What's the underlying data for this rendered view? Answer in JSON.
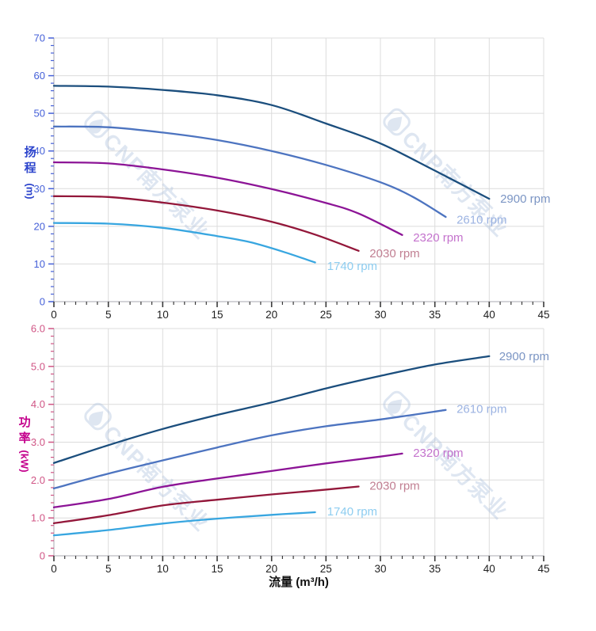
{
  "style": {
    "background": "#ffffff",
    "grid_color": "#dcdcdc",
    "spine_color": "#c6c6cb",
    "x_tick_color": "#3a3a3a",
    "x_tick_label_color": "#1f1f1f"
  },
  "watermark": {
    "logo": "cnp-drop-logo",
    "text": "CNP南方泵业",
    "color": "#a9bedd",
    "opacity": 0.38
  },
  "x_axis": {
    "title": "流量 (m³/h)",
    "range": [
      0,
      45
    ],
    "major_step": 5,
    "minor_step": 1,
    "ticks": [
      {
        "v": 0,
        "label": "0"
      },
      {
        "v": 5,
        "label": "5"
      },
      {
        "v": 10,
        "label": "10"
      },
      {
        "v": 15,
        "label": "15"
      },
      {
        "v": 20,
        "label": "20"
      },
      {
        "v": 25,
        "label": "25"
      },
      {
        "v": 30,
        "label": "30"
      },
      {
        "v": 35,
        "label": "35"
      },
      {
        "v": 40,
        "label": "40"
      },
      {
        "v": 45,
        "label": "45"
      }
    ]
  },
  "chart_data": [
    {
      "id": "head-curves",
      "type": "line",
      "ylabel": "扬程",
      "ylabel_unit": "(m)",
      "xlabel": "",
      "ylim": [
        0,
        70
      ],
      "y_minor_step": 2,
      "axis_color": "#4560d8",
      "title_color": "#2c44cc",
      "grid": true,
      "legend_position": "inline-right",
      "y_ticks": [
        {
          "v": 0,
          "label": "0"
        },
        {
          "v": 10,
          "label": "10"
        },
        {
          "v": 20,
          "label": "20"
        },
        {
          "v": 30,
          "label": "30"
        },
        {
          "v": 40,
          "label": "40"
        },
        {
          "v": 50,
          "label": "50"
        },
        {
          "v": 60,
          "label": "60"
        },
        {
          "v": 70,
          "label": "70"
        }
      ],
      "series": [
        {
          "name": "2900 rpm",
          "rpm": 2900,
          "color": "#1b4e7d",
          "label_color": "#7b95c4",
          "points": [
            [
              0,
              57.3
            ],
            [
              5,
              57.1
            ],
            [
              10,
              56.2
            ],
            [
              15,
              54.8
            ],
            [
              20,
              52.2
            ],
            [
              25,
              47.3
            ],
            [
              30,
              42.0
            ],
            [
              35,
              34.8
            ],
            [
              40,
              27.3
            ]
          ],
          "label_at": [
            41,
            27.3
          ]
        },
        {
          "name": "2610 rpm",
          "rpm": 2610,
          "color": "#4d74c0",
          "label_color": "#9cb3e2",
          "points": [
            [
              0,
              46.5
            ],
            [
              5,
              46.3
            ],
            [
              10,
              44.9
            ],
            [
              15,
              42.9
            ],
            [
              20,
              40.0
            ],
            [
              25,
              36.3
            ],
            [
              30,
              31.7
            ],
            [
              33,
              27.8
            ],
            [
              36,
              22.5
            ]
          ],
          "label_at": [
            37,
            21.8
          ]
        },
        {
          "name": "2320 rpm",
          "rpm": 2320,
          "color": "#8c1496",
          "label_color": "#c473cd",
          "points": [
            [
              0,
              37.0
            ],
            [
              5,
              36.7
            ],
            [
              10,
              35.1
            ],
            [
              15,
              32.9
            ],
            [
              20,
              29.9
            ],
            [
              25,
              26.2
            ],
            [
              28,
              23.4
            ],
            [
              32,
              17.7
            ]
          ],
          "label_at": [
            33,
            17.0
          ]
        },
        {
          "name": "2030 rpm",
          "rpm": 2030,
          "color": "#93173a",
          "label_color": "#c17f92",
          "points": [
            [
              0,
              28.0
            ],
            [
              5,
              27.8
            ],
            [
              10,
              26.3
            ],
            [
              15,
              24.2
            ],
            [
              20,
              21.2
            ],
            [
              24,
              17.8
            ],
            [
              28,
              13.5
            ]
          ],
          "label_at": [
            29,
            12.8
          ]
        },
        {
          "name": "1740 rpm",
          "rpm": 1740,
          "color": "#38a6e0",
          "label_color": "#8ecdf0",
          "points": [
            [
              0,
              20.9
            ],
            [
              5,
              20.7
            ],
            [
              10,
              19.6
            ],
            [
              15,
              17.4
            ],
            [
              18,
              15.8
            ],
            [
              21,
              13.3
            ],
            [
              24,
              10.4
            ]
          ],
          "label_at": [
            25.1,
            9.5
          ]
        }
      ]
    },
    {
      "id": "power-curves",
      "type": "line",
      "ylabel": "功率",
      "ylabel_unit": "(kW)",
      "xlabel": "流量 (m³/h)",
      "ylim": [
        0,
        6
      ],
      "y_minor_step": 0.2,
      "axis_color": "#d05585",
      "title_color": "#c4008c",
      "grid": true,
      "legend_position": "inline-right",
      "y_ticks": [
        {
          "v": 0,
          "label": "0"
        },
        {
          "v": 1,
          "label": "1.0"
        },
        {
          "v": 2,
          "label": "2.0"
        },
        {
          "v": 3,
          "label": "3.0"
        },
        {
          "v": 4,
          "label": "4.0"
        },
        {
          "v": 5,
          "label": "5.0"
        },
        {
          "v": 6,
          "label": "6.0"
        }
      ],
      "series": [
        {
          "name": "2900 rpm",
          "rpm": 2900,
          "color": "#1b4e7d",
          "label_color": "#7b95c4",
          "points": [
            [
              0,
              2.45
            ],
            [
              5,
              2.92
            ],
            [
              10,
              3.35
            ],
            [
              15,
              3.72
            ],
            [
              20,
              4.05
            ],
            [
              25,
              4.42
            ],
            [
              30,
              4.75
            ],
            [
              35,
              5.05
            ],
            [
              40,
              5.27
            ]
          ],
          "label_at": [
            40.9,
            5.27
          ]
        },
        {
          "name": "2610 rpm",
          "rpm": 2610,
          "color": "#4d74c0",
          "label_color": "#9cb3e2",
          "points": [
            [
              0,
              1.78
            ],
            [
              5,
              2.17
            ],
            [
              10,
              2.52
            ],
            [
              15,
              2.86
            ],
            [
              20,
              3.18
            ],
            [
              25,
              3.42
            ],
            [
              30,
              3.6
            ],
            [
              36,
              3.85
            ]
          ],
          "label_at": [
            37,
            3.88
          ]
        },
        {
          "name": "2320 rpm",
          "rpm": 2320,
          "color": "#8c1496",
          "label_color": "#c473cd",
          "points": [
            [
              0,
              1.28
            ],
            [
              5,
              1.5
            ],
            [
              10,
              1.82
            ],
            [
              15,
              2.04
            ],
            [
              20,
              2.24
            ],
            [
              25,
              2.44
            ],
            [
              30,
              2.62
            ],
            [
              32,
              2.7
            ]
          ],
          "label_at": [
            33,
            2.72
          ]
        },
        {
          "name": "2030 rpm",
          "rpm": 2030,
          "color": "#93173a",
          "label_color": "#c17f92",
          "points": [
            [
              0,
              0.86
            ],
            [
              5,
              1.07
            ],
            [
              10,
              1.33
            ],
            [
              15,
              1.48
            ],
            [
              20,
              1.62
            ],
            [
              24,
              1.72
            ],
            [
              28,
              1.83
            ]
          ],
          "label_at": [
            29,
            1.85
          ]
        },
        {
          "name": "1740 rpm",
          "rpm": 1740,
          "color": "#38a6e0",
          "label_color": "#8ecdf0",
          "points": [
            [
              0,
              0.54
            ],
            [
              5,
              0.68
            ],
            [
              10,
              0.85
            ],
            [
              15,
              0.98
            ],
            [
              20,
              1.08
            ],
            [
              24,
              1.15
            ]
          ],
          "label_at": [
            25.1,
            1.17
          ]
        }
      ]
    }
  ]
}
